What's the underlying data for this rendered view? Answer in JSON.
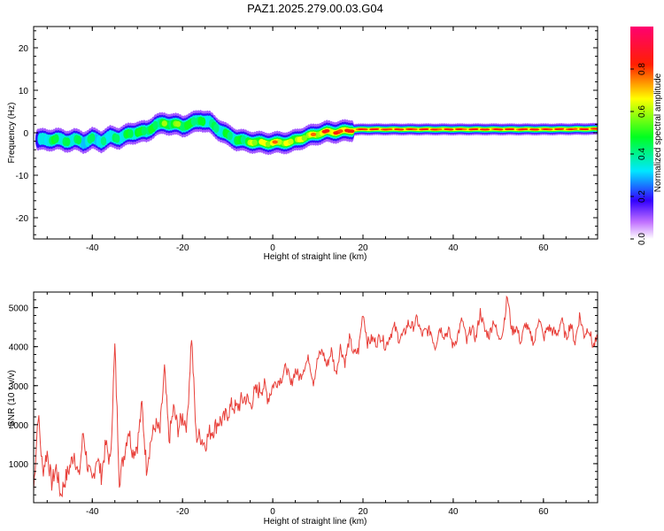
{
  "title": "PAZ1.2025.279.00.03.G04",
  "chart_data": [
    {
      "type": "heatmap",
      "name": "spectrogram",
      "xlabel": "Height of straight line (km)",
      "ylabel": "Frequency (Hz)",
      "xlim": [
        -53,
        72
      ],
      "ylim": [
        -25,
        25
      ],
      "xticks": [
        -40,
        -20,
        0,
        20,
        40,
        60
      ],
      "yticks": [
        -20,
        -10,
        0,
        10,
        20
      ],
      "ridge": {
        "x": [
          -52,
          -50,
          -48,
          -46,
          -44,
          -42,
          -40,
          -38,
          -36,
          -34,
          -32,
          -30,
          -28,
          -26,
          -24,
          -22,
          -20,
          -18,
          -16,
          -14,
          -12,
          -10,
          -8,
          -6,
          -4,
          -2,
          0,
          2,
          4,
          6,
          8,
          10,
          12,
          14,
          16,
          18,
          20,
          25,
          30,
          40,
          50,
          60,
          72
        ],
        "freq": [
          -1.5,
          -1.8,
          -1.4,
          -2.0,
          -1.6,
          -2.2,
          -1.4,
          -2.0,
          -1.0,
          -1.2,
          -0.4,
          0.2,
          0.2,
          1.8,
          2.2,
          2.0,
          1.6,
          2.2,
          3.0,
          2.4,
          0.8,
          -0.6,
          -1.6,
          -2.0,
          -2.2,
          -2.4,
          -2.4,
          -2.3,
          -2.2,
          -1.4,
          -0.8,
          -0.2,
          0.2,
          0.2,
          0.4,
          0.7,
          0.8,
          0.8,
          0.8,
          0.8,
          0.8,
          0.8,
          0.9
        ],
        "amp": [
          0.3,
          0.45,
          0.5,
          0.45,
          0.5,
          0.4,
          0.45,
          0.4,
          0.45,
          0.45,
          0.5,
          0.55,
          0.55,
          0.5,
          0.6,
          0.6,
          0.6,
          0.55,
          0.5,
          0.45,
          0.45,
          0.5,
          0.5,
          0.55,
          0.7,
          0.75,
          0.8,
          0.75,
          0.7,
          0.7,
          0.75,
          0.8,
          0.9,
          0.92,
          0.92,
          0.95,
          0.95,
          0.95,
          0.95,
          0.95,
          0.95,
          0.95,
          0.95
        ]
      }
    },
    {
      "type": "line",
      "name": "snr",
      "xlabel": "Height of straight line (km)",
      "ylabel": "SNR (10 * v/v)",
      "xlim": [
        -53,
        72
      ],
      "ylim": [
        0,
        5400
      ],
      "xticks": [
        -40,
        -20,
        0,
        20,
        40,
        60
      ],
      "yticks": [
        1000,
        2000,
        3000,
        4000,
        5000
      ],
      "color": "#e8403a",
      "x": [
        -53,
        -52,
        -51,
        -50,
        -49,
        -48,
        -47,
        -46,
        -45,
        -44,
        -43,
        -42,
        -41,
        -40,
        -39,
        -38,
        -37,
        -36,
        -35,
        -34,
        -33,
        -32,
        -31,
        -30,
        -29,
        -28,
        -27,
        -26,
        -25,
        -24,
        -23,
        -22,
        -21,
        -20,
        -19,
        -18,
        -17,
        -16,
        -15,
        -14,
        -13,
        -12,
        -11,
        -10,
        -9,
        -8,
        -7,
        -6,
        -5,
        -4,
        -3,
        -2,
        -1,
        0,
        1,
        2,
        3,
        4,
        5,
        6,
        7,
        8,
        9,
        10,
        11,
        12,
        13,
        14,
        15,
        16,
        17,
        18,
        19,
        20,
        21,
        22,
        23,
        24,
        25,
        26,
        27,
        28,
        29,
        30,
        31,
        32,
        33,
        34,
        35,
        36,
        37,
        38,
        39,
        40,
        41,
        42,
        43,
        44,
        45,
        46,
        47,
        48,
        49,
        50,
        51,
        52,
        53,
        54,
        55,
        56,
        57,
        58,
        59,
        60,
        61,
        62,
        63,
        64,
        65,
        66,
        67,
        68,
        69,
        70,
        71,
        72
      ],
      "y": [
        300,
        2300,
        800,
        1300,
        500,
        900,
        200,
        600,
        900,
        1300,
        600,
        1800,
        900,
        500,
        1200,
        700,
        1500,
        1000,
        4000,
        600,
        1200,
        1900,
        1300,
        1500,
        2500,
        900,
        1600,
        2000,
        1800,
        3400,
        1600,
        2400,
        1900,
        2200,
        2000,
        4300,
        1700,
        1700,
        1500,
        1800,
        1900,
        2100,
        2100,
        2300,
        2500,
        2400,
        2600,
        2700,
        2500,
        2800,
        2900,
        3000,
        2700,
        3000,
        3100,
        3200,
        3500,
        3000,
        3400,
        3200,
        3500,
        3700,
        3100,
        3700,
        3900,
        3500,
        3900,
        3300,
        4000,
        3600,
        4200,
        3800,
        3900,
        4900,
        4100,
        4200,
        4100,
        4300,
        4000,
        4300,
        4500,
        4200,
        4300,
        4600,
        4500,
        4700,
        4300,
        4400,
        4400,
        4000,
        4500,
        4300,
        4400,
        4000,
        4300,
        4700,
        4100,
        4500,
        4200,
        4900,
        4400,
        4300,
        4700,
        4200,
        4400,
        5300,
        4400,
        4500,
        4100,
        4600,
        4300,
        4100,
        4800,
        4200,
        4500,
        4400,
        4300,
        4700,
        4200,
        4600,
        4100,
        4800,
        4300,
        4500,
        4000,
        4200
      ]
    }
  ],
  "colorbar": {
    "label": "Normalized spectral amplitude",
    "ticks": [
      "0.0",
      "0.2",
      "0.4",
      "0.6",
      "0.8"
    ],
    "tick_values": [
      0,
      0.2,
      0.4,
      0.6,
      0.8
    ],
    "range": [
      0,
      1
    ]
  }
}
